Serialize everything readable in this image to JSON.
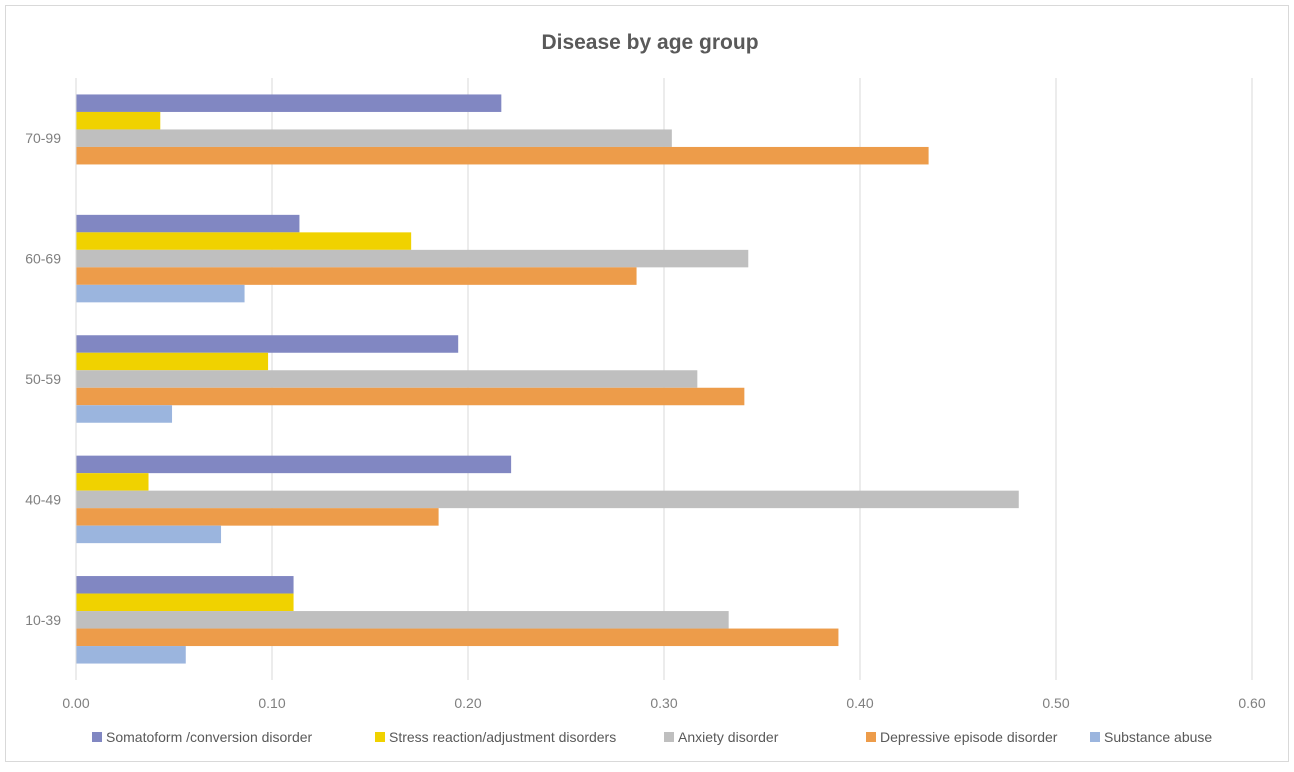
{
  "chart_data": {
    "type": "bar",
    "orientation": "horizontal",
    "title": "Disease by age group",
    "xlabel": "",
    "ylabel": "",
    "categories": [
      "10-39",
      "40-49",
      "50-59",
      "60-69",
      "70-99"
    ],
    "x_ticks": [
      "0.00",
      "0.10",
      "0.20",
      "0.30",
      "0.40",
      "0.50",
      "0.60"
    ],
    "xlim": [
      0,
      0.6
    ],
    "grid": true,
    "legend_position": "bottom",
    "series": [
      {
        "name": "Somatoform /conversion disorder",
        "color": "#8187c2",
        "values": [
          0.111,
          0.222,
          0.195,
          0.114,
          0.217
        ]
      },
      {
        "name": "Stress reaction/adjustment disorders",
        "color": "#f0d200",
        "values": [
          0.111,
          0.037,
          0.098,
          0.171,
          0.043
        ]
      },
      {
        "name": "Anxiety disorder",
        "color": "#bfbfbf",
        "values": [
          0.333,
          0.481,
          0.317,
          0.343,
          0.304
        ]
      },
      {
        "name": "Depressive episode disorder",
        "color": "#ed9c4a",
        "values": [
          0.389,
          0.185,
          0.341,
          0.286,
          0.435
        ]
      },
      {
        "name": "Substance abuse",
        "color": "#9bb5de",
        "values": [
          0.056,
          0.074,
          0.049,
          0.086,
          0.0
        ]
      }
    ]
  }
}
